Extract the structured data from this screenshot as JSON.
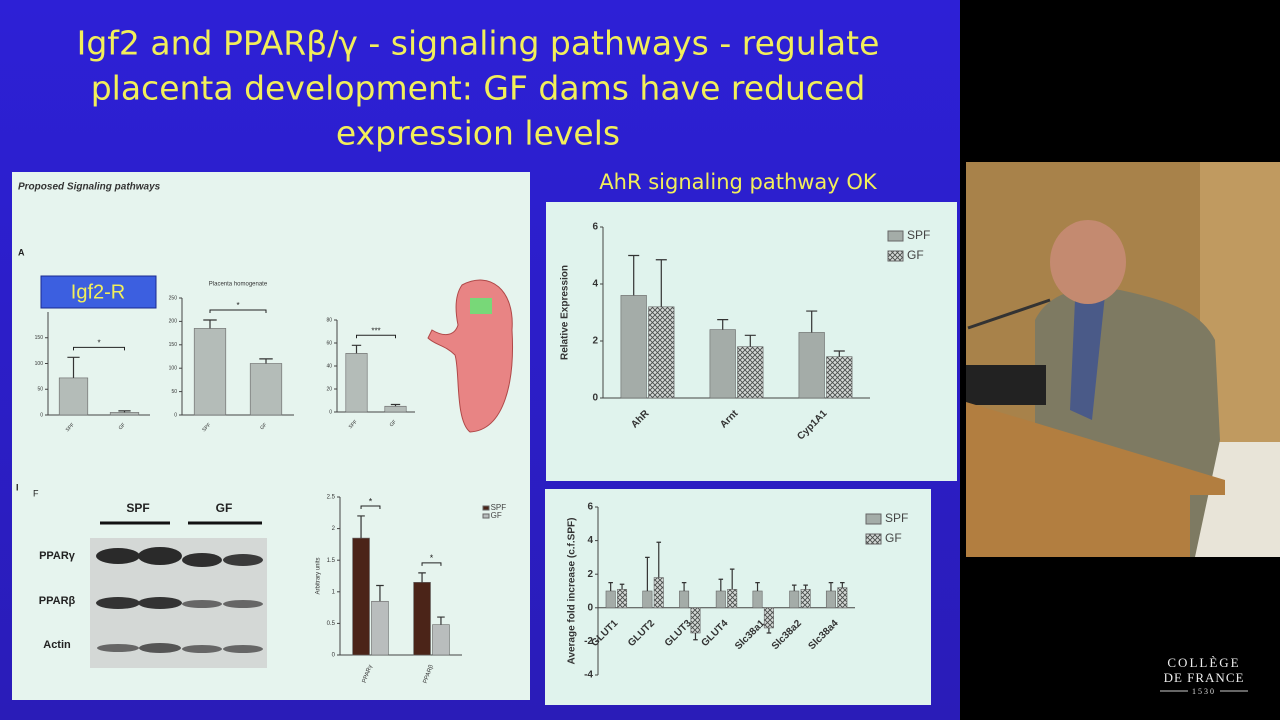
{
  "slide": {
    "title_lines": [
      "Igf2 and PPARβ/γ - signaling pathways - regulate",
      "placenta development:  GF dams have reduced",
      "expression levels"
    ],
    "subtitle_right": "AhR signaling pathway OK"
  },
  "left_panel": {
    "heading": "Proposed Signaling pathways",
    "label_a": "A",
    "label_f": "F",
    "label_i": "I",
    "igf2r_box": "Igf2-R",
    "blot": {
      "groups": [
        "SPF",
        "GF"
      ],
      "rows": [
        "PPARγ",
        "PPARβ",
        "Actin"
      ]
    }
  },
  "charts": {
    "igf2r": {
      "type": "bar",
      "categories": [
        "SPF",
        "GF"
      ],
      "values": [
        72,
        5
      ],
      "errors": [
        40,
        3
      ],
      "color": "#b4bcb8",
      "ylim": [
        0,
        200
      ],
      "yticks": [
        0,
        50,
        100,
        150
      ],
      "annotations": [
        "*"
      ]
    },
    "placenta": {
      "type": "bar",
      "title": "Placenta homogenate",
      "categories": [
        "SPF",
        "GF"
      ],
      "values": [
        185,
        110
      ],
      "errors": [
        18,
        10
      ],
      "color": "#b4bcb8",
      "ylim": [
        0,
        250
      ],
      "yticks": [
        0,
        50,
        100,
        150,
        200,
        250
      ],
      "annotations": [
        "*"
      ]
    },
    "serum": {
      "type": "bar",
      "categories": [
        "SPF",
        "GF"
      ],
      "values": [
        51,
        5
      ],
      "errors": [
        7,
        1.5
      ],
      "color": "#b4bcb8",
      "ylim": [
        0,
        80
      ],
      "yticks": [
        0,
        20,
        40,
        60,
        80
      ],
      "annotations": [
        "***"
      ]
    },
    "ppar": {
      "type": "bar",
      "ylabel": "Arbitrary units",
      "categories": [
        "PPARγ",
        "PPARβ"
      ],
      "series": [
        {
          "name": "SPF",
          "color": "#4b2418",
          "values": [
            1.85,
            1.15
          ],
          "errors": [
            0.35,
            0.15
          ]
        },
        {
          "name": "GF",
          "color": "#b9bdbd",
          "values": [
            0.85,
            0.48
          ],
          "errors": [
            0.25,
            0.12
          ]
        }
      ],
      "ylim": [
        0,
        2.5
      ],
      "yticks": [
        0,
        0.5,
        1,
        1.5,
        2,
        2.5
      ],
      "annotations": [
        "*",
        "*"
      ]
    },
    "ahr": {
      "type": "bar",
      "ylabel": "Relative Expression",
      "categories": [
        "AhR",
        "Arnt",
        "Cyp1A1"
      ],
      "series": [
        {
          "name": "SPF",
          "color": "#a4aca8",
          "values": [
            3.6,
            2.4,
            2.3
          ],
          "errors": [
            1.4,
            0.35,
            0.75
          ]
        },
        {
          "name": "GF",
          "color": "#c8cdcb",
          "pattern": "checker",
          "values": [
            3.2,
            1.8,
            1.45
          ],
          "errors": [
            1.65,
            0.4,
            0.2
          ]
        }
      ],
      "ylim": [
        0,
        6
      ],
      "yticks": [
        0,
        2,
        4,
        6
      ]
    },
    "transporters": {
      "type": "bar",
      "ylabel": "Average fold increase (c.f.SPF)",
      "categories": [
        "GLUT1",
        "GLUT2",
        "GLUT3",
        "GLUT4",
        "Slc38a1",
        "Slc38a2",
        "Slc38a4"
      ],
      "series": [
        {
          "name": "SPF",
          "color": "#a4aca8",
          "values": [
            1,
            1,
            1,
            1,
            1,
            1,
            1
          ],
          "errors": [
            0.5,
            2,
            0.5,
            0.7,
            0.5,
            0.35,
            0.5
          ]
        },
        {
          "name": "GF",
          "color": "#c8cdcb",
          "pattern": "checker",
          "values": [
            1.1,
            1.8,
            -1.5,
            1.1,
            -1.2,
            1.1,
            1.2
          ],
          "errors": [
            0.3,
            2.1,
            0.4,
            1.2,
            0.3,
            0.25,
            0.3
          ]
        }
      ],
      "ylim": [
        -4,
        6
      ],
      "yticks": [
        -4,
        -2,
        0,
        2,
        4,
        6
      ]
    }
  },
  "logo": {
    "line1": "COLLÈGE",
    "line2": "DE FRANCE",
    "year": "1530"
  }
}
